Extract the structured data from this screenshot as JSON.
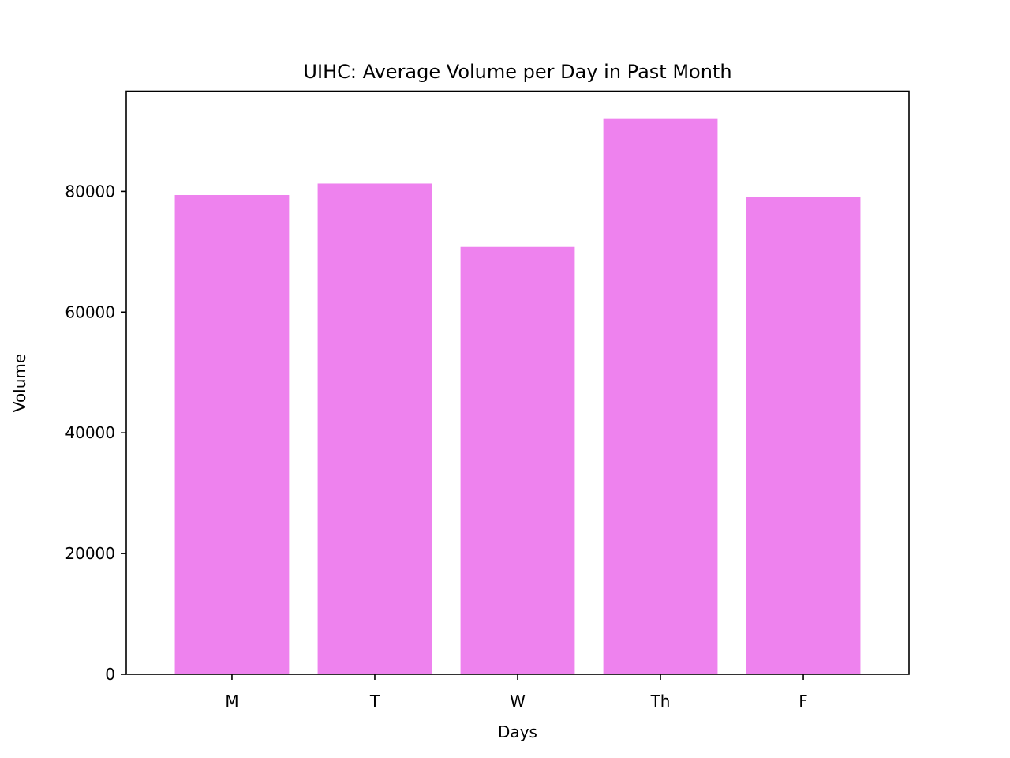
{
  "chart_data": {
    "type": "bar",
    "title": "UIHC: Average Volume per Day in Past Month",
    "xlabel": "Days",
    "ylabel": "Volume",
    "categories": [
      "M",
      "T",
      "W",
      "Th",
      "F"
    ],
    "values": [
      79400,
      81300,
      70800,
      92000,
      79100
    ],
    "ylim": [
      0,
      96600
    ],
    "yticks": [
      0,
      20000,
      40000,
      60000,
      80000
    ],
    "ytick_labels": [
      "0",
      "20000",
      "40000",
      "60000",
      "80000"
    ],
    "bar_color": "#ee82ee",
    "grid": false,
    "legend": false
  }
}
